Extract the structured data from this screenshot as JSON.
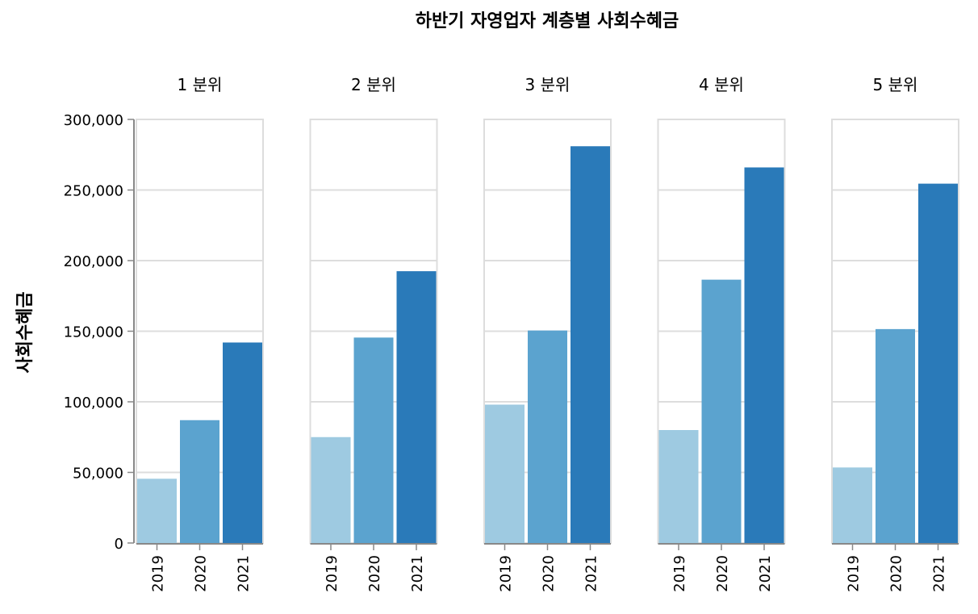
{
  "chart_data": {
    "type": "bar",
    "title": "하반기 자영업자 계층별 사회수혜금",
    "ylabel": "사회수혜금",
    "xlabel": "",
    "ylim": [
      0,
      300000
    ],
    "y_ticks": [
      0,
      50000,
      100000,
      150000,
      200000,
      250000,
      300000
    ],
    "y_tick_labels": [
      "0",
      "50,000",
      "100,000",
      "150,000",
      "200,000",
      "250,000",
      "300,000"
    ],
    "grid": true,
    "categories": [
      "2019",
      "2020",
      "2021"
    ],
    "colors": {
      "2019": "#9ecae1",
      "2020": "#5ba3cf",
      "2021": "#2a7ab9"
    },
    "facets": [
      {
        "label": "1 분위",
        "values": [
          45500,
          87000,
          142000
        ]
      },
      {
        "label": "2 분위",
        "values": [
          75000,
          145500,
          192500
        ]
      },
      {
        "label": "3 분위",
        "values": [
          98000,
          150500,
          281000
        ]
      },
      {
        "label": "4 분위",
        "values": [
          80000,
          186500,
          266000
        ]
      },
      {
        "label": "5 분위",
        "values": [
          53500,
          151500,
          254500
        ]
      }
    ]
  }
}
